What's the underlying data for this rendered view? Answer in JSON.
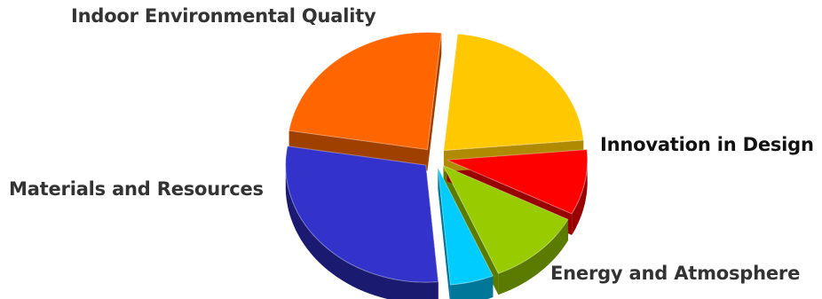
{
  "chart_data": {
    "type": "pie",
    "style": "3d-exploded",
    "title": "",
    "legend": "none",
    "slices": [
      {
        "label": "Indoor Environmental Quality",
        "value": 22,
        "color": "#ffc800",
        "side": "#b08a00",
        "label_color": "#333333"
      },
      {
        "label": "",
        "value": 9,
        "color": "#ff0000",
        "side": "#990000",
        "label_color": "#333333"
      },
      {
        "label": "",
        "value": 11,
        "color": "#99cc00",
        "side": "#5a7a00",
        "label_color": "#333333"
      },
      {
        "label": "Innovation in Design",
        "value": 5,
        "color": "#00ccff",
        "side": "#007799",
        "label_color": "#111111"
      },
      {
        "label": "Energy and Atmosphere",
        "value": 29,
        "color": "#3333cc",
        "side": "#1a1a70",
        "label_color": "#333333"
      },
      {
        "label": "Materials and Resources",
        "value": 24,
        "color": "#ff6600",
        "side": "#a04000",
        "label_color": "#333333"
      }
    ]
  }
}
